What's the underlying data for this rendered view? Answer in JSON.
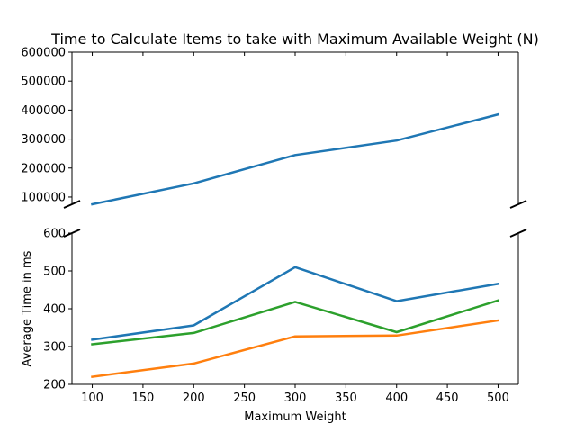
{
  "chart_data": {
    "type": "line",
    "title": "Time to Calculate Items to take with Maximum Available Weight (N)",
    "xlabel": "Maximum Weight",
    "ylabel": "Average Time in ms",
    "x": [
      100,
      200,
      300,
      400,
      500
    ],
    "xlim": [
      80,
      520
    ],
    "xticks": [
      100,
      150,
      200,
      250,
      300,
      350,
      400,
      450,
      500
    ],
    "broken_y_axis": true,
    "upper_panel": {
      "ylim": [
        75000,
        600000
      ],
      "yticks": [
        100000,
        200000,
        300000,
        400000,
        500000,
        600000
      ],
      "series": [
        {
          "color": "#1f77b4",
          "values": [
            75000,
            147000,
            245000,
            295000,
            385000
          ]
        }
      ]
    },
    "lower_panel": {
      "ylim": [
        200,
        600
      ],
      "yticks": [
        200,
        300,
        400,
        500,
        600
      ],
      "series": [
        {
          "color": "#1f77b4",
          "values": [
            318,
            356,
            510,
            420,
            466
          ]
        },
        {
          "color": "#2ca02c",
          "values": [
            306,
            336,
            418,
            338,
            422
          ]
        },
        {
          "color": "#ff7f0e",
          "values": [
            220,
            255,
            327,
            329,
            369
          ]
        }
      ]
    },
    "grid": false,
    "legend": "none"
  }
}
